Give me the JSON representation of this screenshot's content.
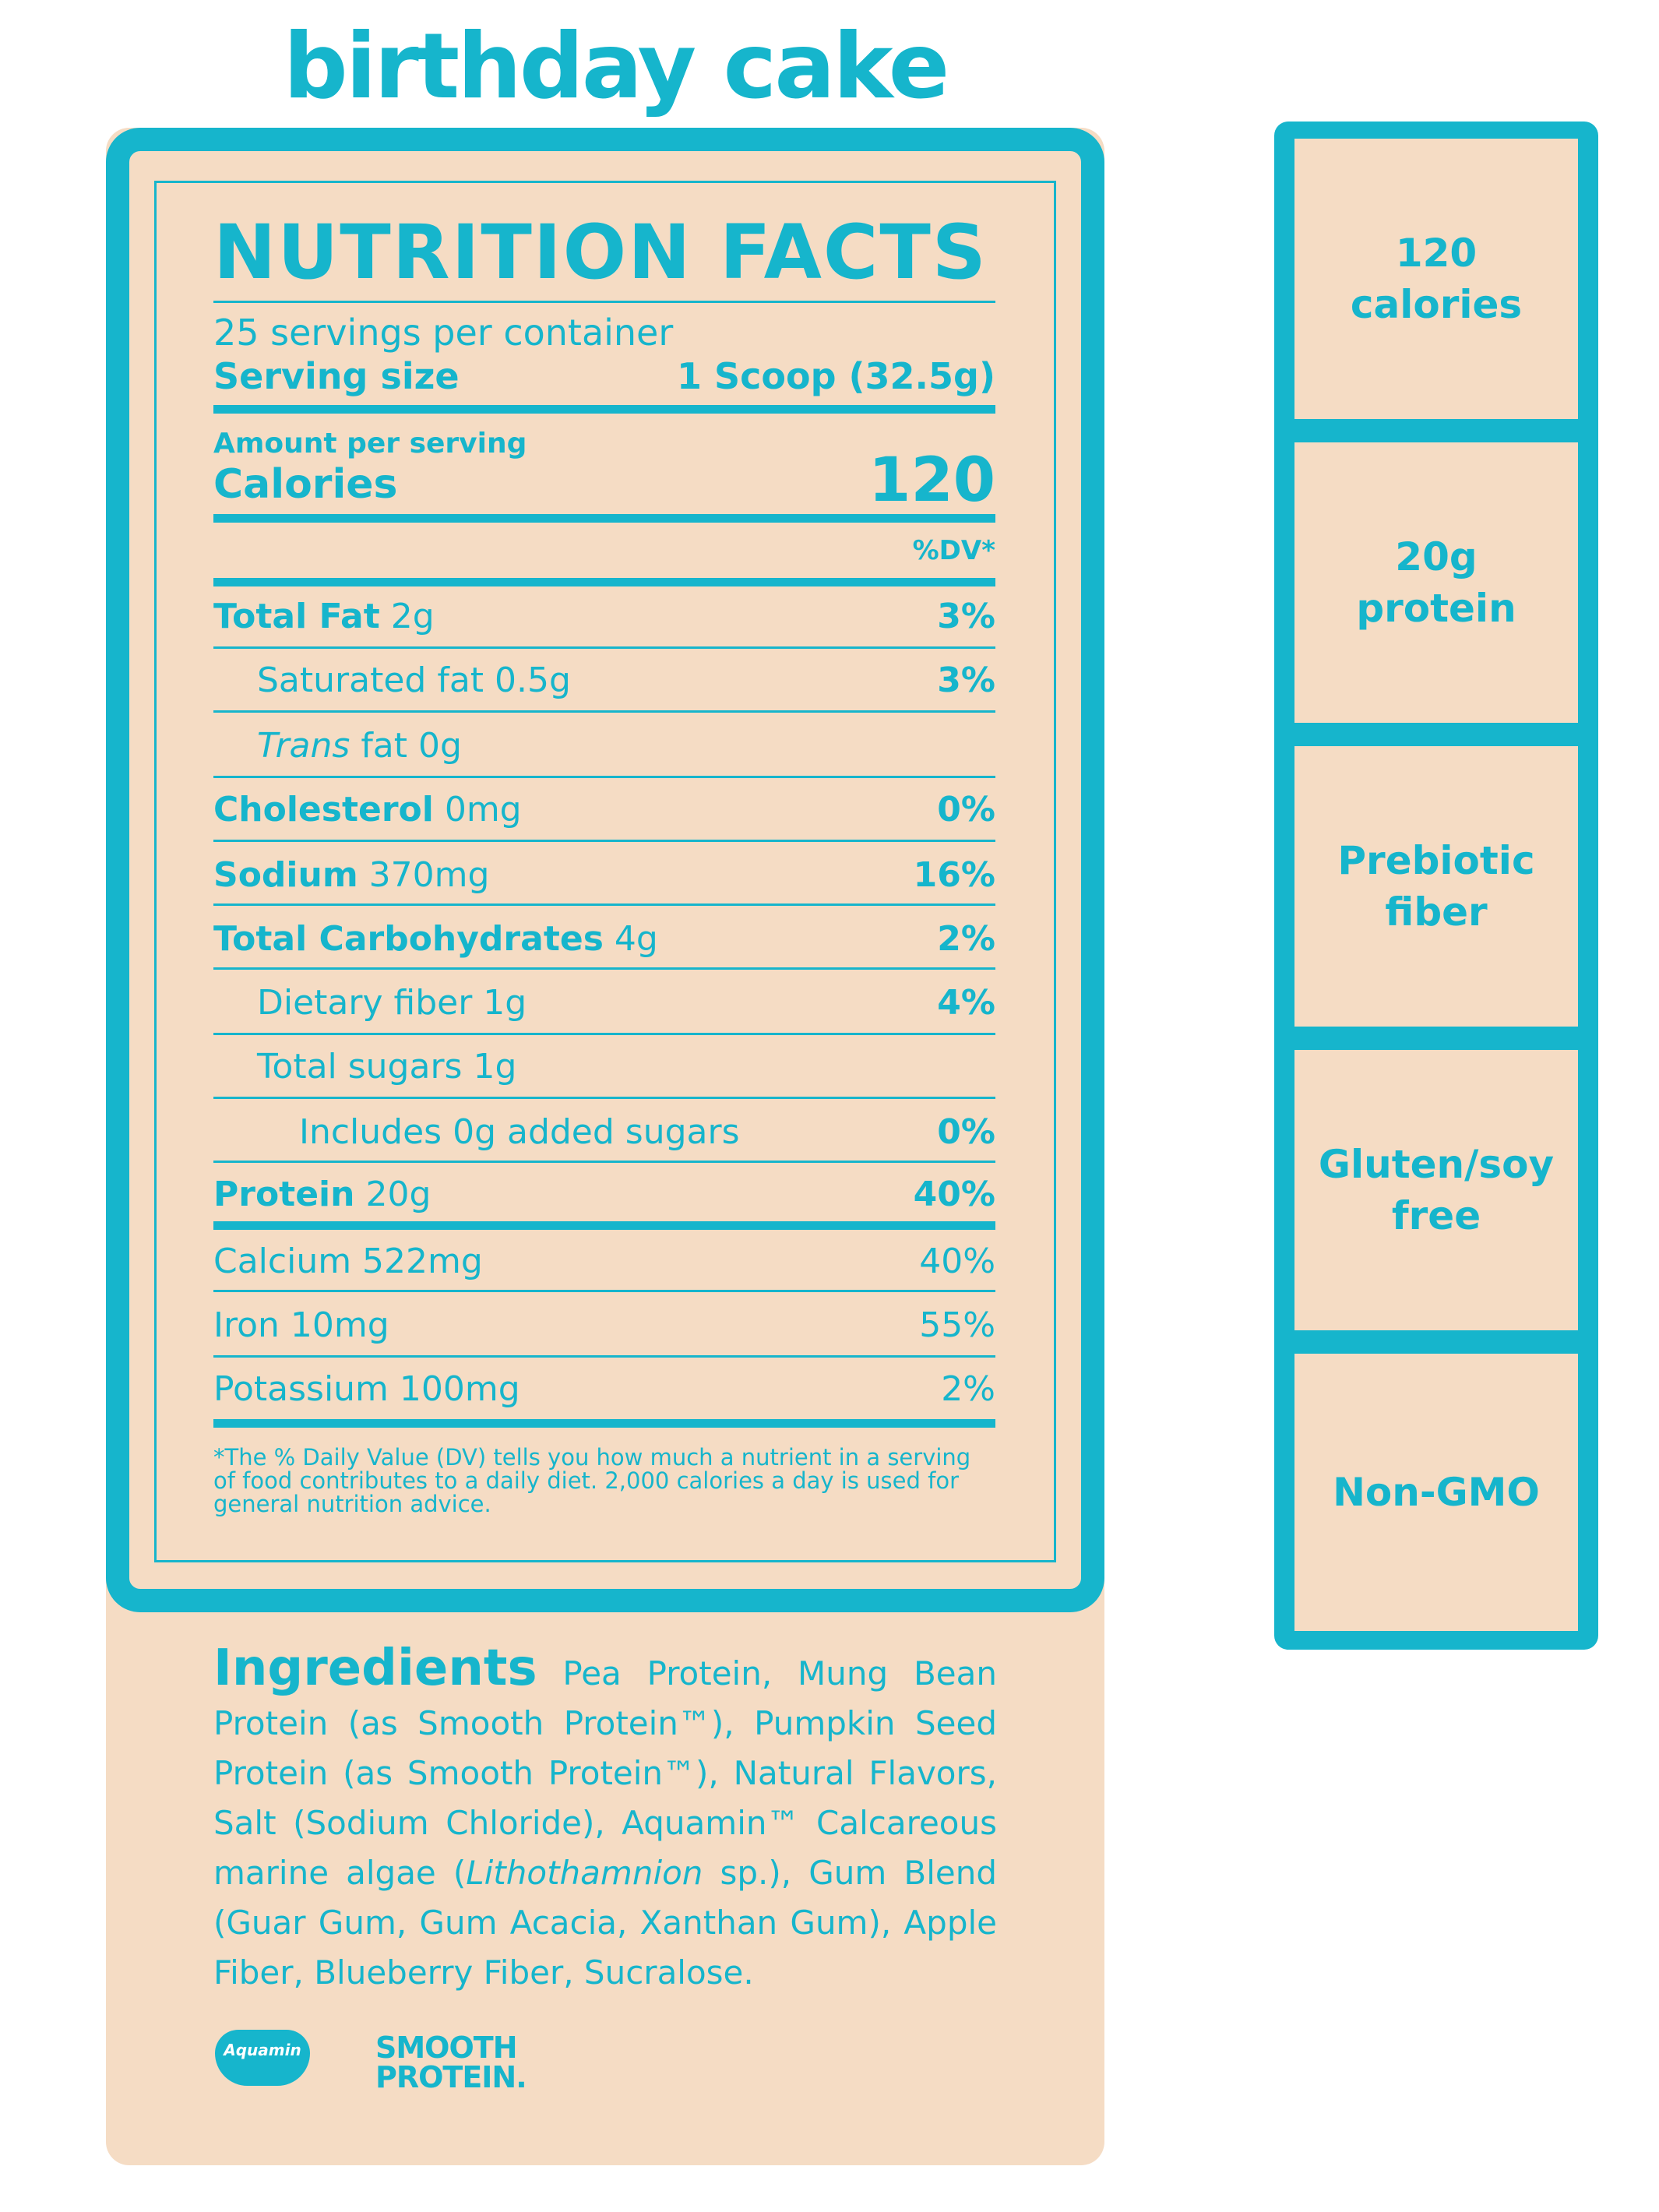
{
  "flavor": "birthday cake",
  "label": {
    "title": "NUTRITION FACTS",
    "servings": "25 servings per container",
    "serving_size_label": "Serving size",
    "serving_size_value": "1 Scoop (32.5g)",
    "amount_per_serving": "Amount per serving",
    "calories_label": "Calories",
    "calories_value": "120",
    "dv_header": "%DV*",
    "rows": [
      {
        "name": "Total Fat",
        "amount": " 2g",
        "dv": "3%"
      },
      {
        "name": "Saturated fat 0.5g",
        "amount": "",
        "dv": "3%"
      },
      {
        "name": "Trans",
        "amount": " fat 0g",
        "dv": ""
      },
      {
        "name": "Cholesterol",
        "amount": " 0mg",
        "dv": "0%"
      },
      {
        "name": "Sodium",
        "amount": " 370mg",
        "dv": "16%"
      },
      {
        "name": "Total Carbohydrates",
        "amount": " 4g",
        "dv": "2%"
      },
      {
        "name": "Dietary fiber 1g",
        "amount": "",
        "dv": "4%"
      },
      {
        "name": "Total sugars 1g",
        "amount": "",
        "dv": ""
      },
      {
        "name": "Includes 0g added sugars",
        "amount": "",
        "dv": "0%"
      },
      {
        "name": "Protein",
        "amount": " 20g",
        "dv": "40%"
      },
      {
        "name": "Calcium 522mg",
        "amount": "",
        "dv": "40%"
      },
      {
        "name": "Iron 10mg",
        "amount": "",
        "dv": "55%"
      },
      {
        "name": "Potassium 100mg",
        "amount": "",
        "dv": "2%"
      }
    ],
    "footnote": "*The % Daily Value (DV) tells you how much a nutrient in a serving of food contributes to a daily diet. 2,000 calories a day is used for general nutrition advice."
  },
  "ingredients": {
    "heading": "Ingredients",
    "text_1": "Pea Protein, Mung Bean Protein (as Smooth Protein™), Pumpkin Seed Protein (as Smooth Protein™), Natural Flavors, Salt (Sodium Chloride), Aquamin™ Calcareous marine algae (",
    "text_italic": "Lithothamnion",
    "text_2": " sp.), Gum Blend (Guar Gum, Gum Acacia, Xanthan Gum), Apple Fiber, Blueberry Fiber, Sucralose."
  },
  "logos": {
    "aquamin": "Aquamin",
    "smooth_line1": "SMOOTH",
    "smooth_line2": "PROTEIN."
  },
  "highlights": [
    {
      "line1": "120",
      "line2": "calories"
    },
    {
      "line1": "20g",
      "line2": "protein"
    },
    {
      "line1": "Prebiotic",
      "line2": "fiber"
    },
    {
      "line1": "Gluten/soy",
      "line2": "free"
    },
    {
      "line1": "Non-GMO",
      "line2": ""
    }
  ],
  "colors": {
    "accent": "#16b5cc",
    "panel": "#f5dcc4"
  }
}
